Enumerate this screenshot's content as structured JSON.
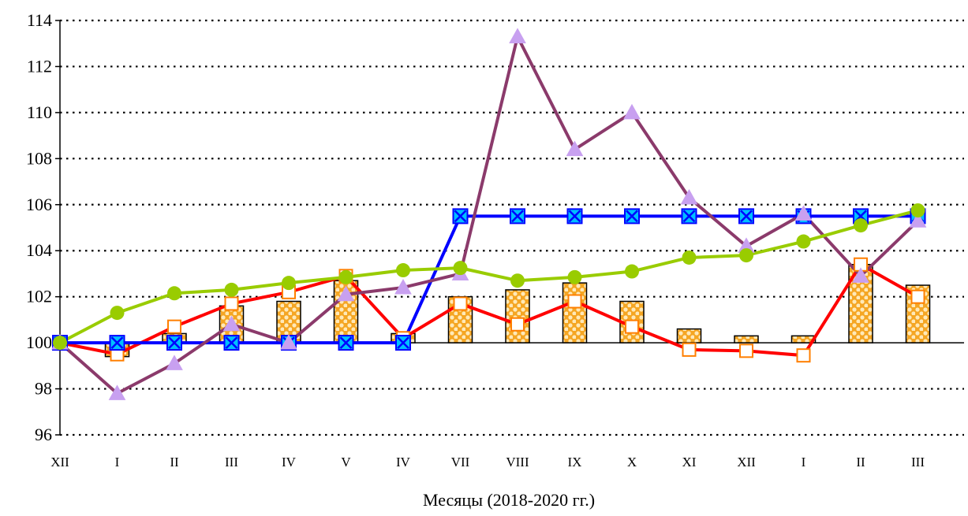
{
  "chart_data": {
    "type": "line",
    "title": "",
    "xlabel": "Месяцы (2018-2020 гг.)",
    "ylabel": "",
    "ylim": [
      96,
      114
    ],
    "yticks": [
      96,
      98,
      100,
      102,
      104,
      106,
      108,
      110,
      112,
      114
    ],
    "baseline": 100,
    "grid": "dotted-horizontal",
    "legend": "none",
    "categories": [
      "XII",
      "I",
      "II",
      "III",
      "IV",
      "V",
      "IV",
      "VII",
      "VIII",
      "IX",
      "X",
      "XI",
      "XII",
      "I",
      "II",
      "III"
    ],
    "series": [
      {
        "type": "bar",
        "color": "#f5a623",
        "pattern": "orange-dots",
        "values": [
          100,
          99.4,
          100.4,
          101.6,
          101.8,
          102.7,
          100.4,
          102.0,
          102.3,
          102.6,
          101.8,
          100.6,
          100.3,
          100.3,
          103.4,
          102.5
        ]
      },
      {
        "type": "line",
        "color": "#ff0000",
        "marker": "open-square",
        "marker_color": "#ff7f00",
        "values": [
          100,
          99.5,
          100.7,
          101.7,
          102.2,
          102.9,
          100.2,
          101.7,
          100.8,
          101.8,
          100.7,
          99.7,
          99.65,
          99.45,
          103.4,
          102.0
        ]
      },
      {
        "type": "line",
        "color": "#0000ff",
        "marker": "x-square",
        "marker_color": "#00bfff",
        "values": [
          100,
          100,
          100,
          100,
          100,
          100,
          100,
          105.5,
          105.5,
          105.5,
          105.5,
          105.5,
          105.5,
          105.5,
          105.5,
          105.5
        ]
      },
      {
        "type": "line",
        "color": "#8b3a6b",
        "marker": "triangle",
        "marker_color": "#c8a0f0",
        "values": [
          100,
          97.8,
          99.1,
          100.8,
          100.0,
          102.1,
          102.4,
          103.0,
          113.3,
          108.4,
          110.0,
          106.3,
          104.2,
          105.6,
          102.9,
          105.3
        ]
      },
      {
        "type": "line",
        "color": "#99cc00",
        "marker": "circle",
        "marker_color": "#99cc00",
        "values": [
          100,
          101.3,
          102.15,
          102.3,
          102.6,
          102.85,
          103.15,
          103.25,
          102.7,
          102.85,
          103.1,
          103.7,
          103.8,
          104.4,
          105.1,
          105.75
        ]
      }
    ]
  }
}
